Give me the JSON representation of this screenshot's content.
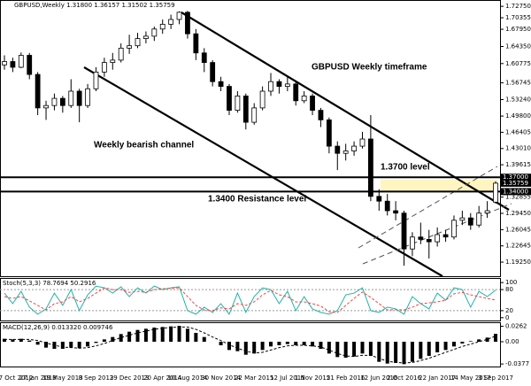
{
  "chart_data": [
    {
      "type": "candlestick",
      "title": "GBPUSD,Weekly  1.31800 1.36157 1.31502 1.35759",
      "annotations": [
        "GBPUSD Weekly timeframe",
        "Weekly bearish channel",
        "1.3700  level",
        "1.3400 Resistance level"
      ],
      "categories": [
        "7 Oct 2012",
        null,
        null,
        null,
        "27 Jan 2013",
        null,
        null,
        "19 May 2013",
        null,
        null,
        null,
        "8 Sep 2013",
        null,
        null,
        null,
        "29 Dec 2013",
        null,
        null,
        null,
        "20 Apr 2014",
        null,
        null,
        "10 Aug 2014",
        null,
        null,
        null,
        "30 Nov 2014",
        null,
        null,
        null,
        "22 Mar 2015",
        null,
        null,
        null,
        "12 Jul 2015",
        null,
        null,
        "1 Nov 2015",
        null,
        null,
        null,
        "21 Feb 2016",
        null,
        null,
        null,
        "12 Jun 2016",
        null,
        null,
        "2 Oct 2016",
        null,
        null,
        null,
        "22 Jan 2017",
        null,
        null,
        null,
        "14 May 2017",
        null,
        null,
        "3 Sep 2017"
      ],
      "ohlc": [
        [
          1.605,
          1.625,
          1.595,
          1.612
        ],
        [
          1.612,
          1.62,
          1.59,
          1.6
        ],
        [
          1.6,
          1.631,
          1.598,
          1.625
        ],
        [
          1.625,
          1.63,
          1.575,
          1.585
        ],
        [
          1.585,
          1.59,
          1.5,
          1.515
        ],
        [
          1.515,
          1.53,
          1.49,
          1.52
        ],
        [
          1.52,
          1.545,
          1.51,
          1.535
        ],
        [
          1.535,
          1.54,
          1.505,
          1.52
        ],
        [
          1.52,
          1.575,
          1.515,
          1.55
        ],
        [
          1.55,
          1.555,
          1.485,
          1.52
        ],
        [
          1.52,
          1.565,
          1.515,
          1.555
        ],
        [
          1.555,
          1.6,
          1.55,
          1.59
        ],
        [
          1.59,
          1.62,
          1.58,
          1.61
        ],
        [
          1.61,
          1.63,
          1.595,
          1.615
        ],
        [
          1.615,
          1.65,
          1.61,
          1.64
        ],
        [
          1.64,
          1.668,
          1.628,
          1.645
        ],
        [
          1.645,
          1.672,
          1.64,
          1.66
        ],
        [
          1.66,
          1.675,
          1.65,
          1.665
        ],
        [
          1.665,
          1.685,
          1.655,
          1.68
        ],
        [
          1.68,
          1.7,
          1.67,
          1.69
        ],
        [
          1.69,
          1.71,
          1.68,
          1.7
        ],
        [
          1.7,
          1.717,
          1.69,
          1.715
        ],
        [
          1.715,
          1.718,
          1.66,
          1.67
        ],
        [
          1.67,
          1.68,
          1.615,
          1.63
        ],
        [
          1.63,
          1.64,
          1.59,
          1.61
        ],
        [
          1.61,
          1.615,
          1.56,
          1.57
        ],
        [
          1.57,
          1.58,
          1.55,
          1.56
        ],
        [
          1.56,
          1.565,
          1.5,
          1.51
        ],
        [
          1.51,
          1.55,
          1.505,
          1.54
        ],
        [
          1.54,
          1.545,
          1.47,
          1.485
        ],
        [
          1.485,
          1.525,
          1.48,
          1.515
        ],
        [
          1.515,
          1.56,
          1.51,
          1.55
        ],
        [
          1.55,
          1.588,
          1.54,
          1.57
        ],
        [
          1.57,
          1.575,
          1.545,
          1.56
        ],
        [
          1.56,
          1.58,
          1.55,
          1.565
        ],
        [
          1.565,
          1.57,
          1.52,
          1.53
        ],
        [
          1.53,
          1.55,
          1.525,
          1.54
        ],
        [
          1.54,
          1.545,
          1.5,
          1.51
        ],
        [
          1.51,
          1.515,
          1.475,
          1.49
        ],
        [
          1.49,
          1.495,
          1.42,
          1.435
        ],
        [
          1.435,
          1.445,
          1.385,
          1.42
        ],
        [
          1.42,
          1.44,
          1.405,
          1.425
        ],
        [
          1.425,
          1.445,
          1.415,
          1.435
        ],
        [
          1.435,
          1.465,
          1.43,
          1.45
        ],
        [
          1.45,
          1.5,
          1.32,
          1.33
        ],
        [
          1.33,
          1.345,
          1.3,
          1.32
        ],
        [
          1.32,
          1.335,
          1.29,
          1.3
        ],
        [
          1.3,
          1.32,
          1.28,
          1.295
        ],
        [
          1.295,
          1.3,
          1.185,
          1.22
        ],
        [
          1.22,
          1.255,
          1.205,
          1.245
        ],
        [
          1.245,
          1.275,
          1.23,
          1.24
        ],
        [
          1.24,
          1.26,
          1.2,
          1.235
        ],
        [
          1.235,
          1.265,
          1.225,
          1.25
        ],
        [
          1.25,
          1.26,
          1.235,
          1.245
        ],
        [
          1.245,
          1.29,
          1.24,
          1.28
        ],
        [
          1.28,
          1.3,
          1.27,
          1.285
        ],
        [
          1.285,
          1.295,
          1.26,
          1.27
        ],
        [
          1.27,
          1.31,
          1.265,
          1.295
        ],
        [
          1.295,
          1.32,
          1.285,
          1.3
        ],
        [
          1.318,
          1.36157,
          1.31502,
          1.35759
        ]
      ],
      "ylim": [
        1.163,
        1.737
      ],
      "yticks": [
        {
          "value": 1.7275,
          "label": "1.72750"
        },
        {
          "value": 1.70355,
          "label": "1.70355"
        },
        {
          "value": 1.6795,
          "label": "1.67950"
        },
        {
          "value": 1.6435,
          "label": "1.64350"
        },
        {
          "value": 1.60775,
          "label": "1.60775"
        },
        {
          "value": 1.56745,
          "label": "1.56745"
        },
        {
          "value": 1.5324,
          "label": "1.53240"
        },
        {
          "value": 1.498,
          "label": "1.49800"
        },
        {
          "value": 1.46405,
          "label": "1.46405"
        },
        {
          "value": 1.4301,
          "label": "1.43010"
        },
        {
          "value": 1.39615,
          "label": "1.39615"
        },
        {
          "value": 1.32855,
          "label": "1.32855"
        },
        {
          "value": 1.2945,
          "label": "1.29450"
        },
        {
          "value": 1.26045,
          "label": "1.26045"
        },
        {
          "value": 1.22645,
          "label": "1.22645"
        },
        {
          "value": 1.1925,
          "label": "1.19250"
        }
      ],
      "hlines": [
        {
          "value": 1.37,
          "label": "1.37000"
        },
        {
          "value": 1.34,
          "label": "1.34000"
        }
      ],
      "current_label": "1.35759"
    },
    {
      "type": "line",
      "title": "Stoch(5,3,3) 78.7694 50.2916",
      "ylim": [
        -8,
        108
      ],
      "yticks": [
        100,
        80,
        20,
        0
      ],
      "levels": [
        80,
        20
      ],
      "series": [
        {
          "color": "#20b2aa",
          "values": [
            70,
            40,
            75,
            30,
            10,
            25,
            70,
            35,
            80,
            20,
            65,
            90,
            85,
            70,
            88,
            60,
            85,
            70,
            90,
            80,
            85,
            88,
            20,
            10,
            30,
            15,
            40,
            10,
            70,
            15,
            60,
            85,
            80,
            40,
            75,
            20,
            60,
            25,
            15,
            10,
            20,
            65,
            70,
            85,
            20,
            15,
            30,
            25,
            10,
            60,
            40,
            25,
            70,
            50,
            85,
            80,
            30,
            75,
            60,
            78.7694
          ]
        },
        {
          "color": "#ff4040",
          "values": [
            60,
            55,
            60,
            48,
            35,
            22,
            40,
            45,
            60,
            45,
            55,
            70,
            85,
            80,
            80,
            72,
            75,
            72,
            80,
            82,
            84,
            85,
            60,
            35,
            22,
            20,
            28,
            25,
            40,
            35,
            45,
            65,
            78,
            65,
            60,
            45,
            45,
            40,
            33,
            17,
            15,
            35,
            55,
            73,
            58,
            40,
            22,
            23,
            22,
            30,
            40,
            42,
            45,
            50,
            68,
            72,
            65,
            60,
            55,
            50.2916
          ]
        }
      ]
    },
    {
      "type": "bar",
      "title": "MACD(12,26,9) 0.013320 0.009746",
      "ylim": [
        -0.042,
        0.03
      ],
      "yticks": [
        0.0262,
        {
          "value": 0,
          "label": "0.00"
        },
        -0.0377
      ],
      "color": "#000000",
      "signal_color": "#000000",
      "values": [
        0.005,
        0.004,
        0.005,
        0.002,
        -0.005,
        -0.01,
        -0.012,
        -0.012,
        -0.01,
        -0.011,
        -0.008,
        -0.002,
        0.004,
        0.008,
        0.013,
        0.017,
        0.02,
        0.022,
        0.024,
        0.025,
        0.026,
        0.027,
        0.022,
        0.015,
        0.008,
        0,
        -0.006,
        -0.014,
        -0.016,
        -0.022,
        -0.02,
        -0.014,
        -0.008,
        -0.006,
        -0.004,
        -0.006,
        -0.006,
        -0.008,
        -0.012,
        -0.02,
        -0.026,
        -0.027,
        -0.025,
        -0.02,
        -0.024,
        -0.034,
        -0.037,
        -0.036,
        -0.038,
        -0.034,
        -0.029,
        -0.024,
        -0.018,
        -0.014,
        -0.008,
        -0.003,
        0.001,
        0.004,
        0.007,
        0.01332
      ],
      "signal": [
        0.004,
        0.004,
        0.004,
        0.004,
        0.002,
        -0.002,
        -0.006,
        -0.009,
        -0.01,
        -0.011,
        -0.01,
        -0.007,
        -0.003,
        0.002,
        0.007,
        0.011,
        0.015,
        0.018,
        0.021,
        0.023,
        0.024,
        0.025,
        0.025,
        0.021,
        0.015,
        0.008,
        0.002,
        -0.005,
        -0.011,
        -0.016,
        -0.019,
        -0.018,
        -0.014,
        -0.01,
        -0.007,
        -0.006,
        -0.006,
        -0.007,
        -0.009,
        -0.014,
        -0.02,
        -0.024,
        -0.025,
        -0.023,
        -0.023,
        -0.028,
        -0.033,
        -0.035,
        -0.036,
        -0.035,
        -0.032,
        -0.028,
        -0.023,
        -0.018,
        -0.013,
        -0.008,
        -0.004,
        0,
        0.004,
        0.009746
      ]
    }
  ]
}
